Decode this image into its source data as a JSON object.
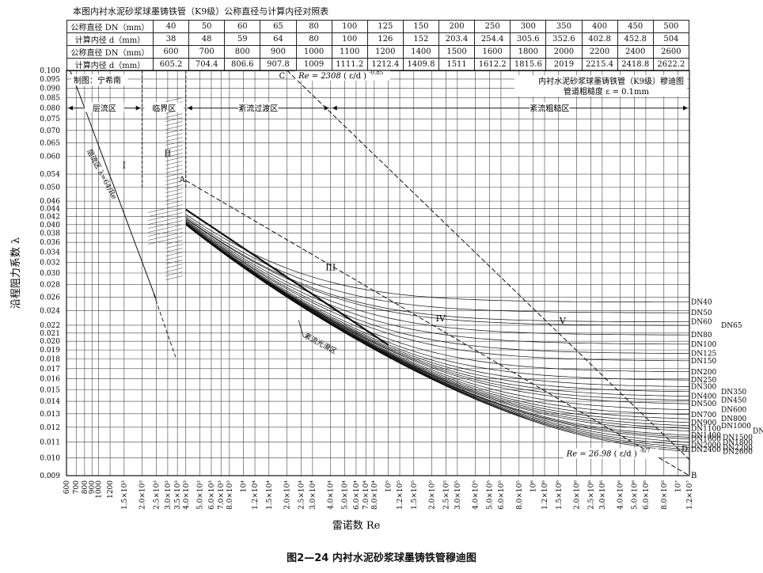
{
  "table": {
    "title": "本图内衬水泥砂浆球墨铸铁管（K9级）公称直径与计算内径对照表",
    "rows": [
      [
        "公称直径 DN（mm）",
        "40",
        "50",
        "60",
        "65",
        "80",
        "100",
        "125",
        "150",
        "200",
        "250",
        "300",
        "350",
        "400",
        "450",
        "500"
      ],
      [
        "计算内径 d（mm）",
        "38",
        "48",
        "59",
        "64",
        "80",
        "100",
        "126",
        "152",
        "203.4",
        "254.4",
        "305.6",
        "352.6",
        "402.8",
        "452.8",
        "504"
      ],
      [
        "公称直径 DN（mm）",
        "600",
        "700",
        "800",
        "900",
        "1000",
        "1100",
        "1200",
        "1400",
        "1500",
        "1600",
        "1800",
        "2000",
        "2200",
        "2400",
        "2600"
      ],
      [
        "计算内径 d（mm）",
        "605.2",
        "704.4",
        "806.6",
        "907.8",
        "1009",
        "1111.2",
        "1212.4",
        "1409.8",
        "1511",
        "1612.2",
        "1815.6",
        "2019",
        "2215.4",
        "2418.8",
        "2622.2"
      ]
    ]
  },
  "chart_data": {
    "type": "line",
    "title": "内衬水泥砂浆球墨铸铁管（K9级）穆迪图",
    "subtitle": "管道粗糙度 ε = 0.1mm",
    "credit": "制图：宁希南",
    "caption": "图2—24   内衬水泥砂浆球墨铸铁管穆迪图",
    "xlabel": "雷诺数 Re",
    "ylabel": "沿程阻力系数 λ",
    "x_scale": "log",
    "y_scale": "log",
    "xlim": [
      600,
      12000000
    ],
    "ylim": [
      0.009,
      0.1
    ],
    "grid": true,
    "x_tick_labels": [
      {
        "x": 600,
        "label": "600"
      },
      {
        "x": 700,
        "label": "700"
      },
      {
        "x": 800,
        "label": "800"
      },
      {
        "x": 900,
        "label": "900"
      },
      {
        "x": 1000,
        "label": "1000"
      },
      {
        "x": 1200,
        "label": "1200"
      },
      {
        "x": 1500,
        "label": "1.5×10³"
      },
      {
        "x": 2000,
        "label": "2.0×10³"
      },
      {
        "x": 2500,
        "label": "2.5×10³"
      },
      {
        "x": 3000,
        "label": "3.0×10³"
      },
      {
        "x": 3500,
        "label": "3.5×10³"
      },
      {
        "x": 4000,
        "label": "4.0×10³"
      },
      {
        "x": 5000,
        "label": "5.0×10³"
      },
      {
        "x": 6000,
        "label": "6.0×10³"
      },
      {
        "x": 7000,
        "label": "7.0×10³"
      },
      {
        "x": 8000,
        "label": "8.0×10³"
      },
      {
        "x": 10000,
        "label": "10⁴"
      },
      {
        "x": 12000,
        "label": "1.2×10⁴"
      },
      {
        "x": 15000,
        "label": "1.5×10⁴"
      },
      {
        "x": 20000,
        "label": "2.0×10⁴"
      },
      {
        "x": 25000,
        "label": "2.5×10⁴"
      },
      {
        "x": 30000,
        "label": "3.0×10⁴"
      },
      {
        "x": 40000,
        "label": "4.0×10⁴"
      },
      {
        "x": 50000,
        "label": "5.0×10⁴"
      },
      {
        "x": 60000,
        "label": "6.0×10⁴"
      },
      {
        "x": 70000,
        "label": "7.0×10⁴"
      },
      {
        "x": 80000,
        "label": "8.0×10⁴"
      },
      {
        "x": 100000,
        "label": "10⁵"
      },
      {
        "x": 120000,
        "label": "1.2×10⁵"
      },
      {
        "x": 150000,
        "label": "1.5×10⁵"
      },
      {
        "x": 200000,
        "label": "2.0×10⁵"
      },
      {
        "x": 250000,
        "label": "2.5×10⁵"
      },
      {
        "x": 300000,
        "label": "3.0×10⁵"
      },
      {
        "x": 400000,
        "label": "4.0×10⁵"
      },
      {
        "x": 500000,
        "label": "5.0×10⁵"
      },
      {
        "x": 600000,
        "label": "6.0×10⁵"
      },
      {
        "x": 800000,
        "label": "8.0×10⁵"
      },
      {
        "x": 1000000,
        "label": "10⁶"
      },
      {
        "x": 1200000,
        "label": "1.2×10⁶"
      },
      {
        "x": 1500000,
        "label": "1.5×10⁶"
      },
      {
        "x": 2000000,
        "label": "2.0×10⁶"
      },
      {
        "x": 2500000,
        "label": "2.5×10⁶"
      },
      {
        "x": 3000000,
        "label": "3.0×10⁶"
      },
      {
        "x": 4000000,
        "label": "4.0×10⁶"
      },
      {
        "x": 5000000,
        "label": "5.0×10⁶"
      },
      {
        "x": 6000000,
        "label": "6.0×10⁶"
      },
      {
        "x": 8000000,
        "label": "8.0×10⁶"
      },
      {
        "x": 10000000,
        "label": "10⁷"
      },
      {
        "x": 12000000,
        "label": "1.2×10⁷"
      }
    ],
    "y_ticks": [
      0.1,
      0.095,
      0.09,
      0.085,
      0.08,
      0.075,
      0.07,
      0.065,
      0.06,
      0.054,
      0.05,
      0.046,
      0.044,
      0.042,
      0.04,
      0.038,
      0.036,
      0.034,
      0.032,
      0.03,
      0.028,
      0.026,
      0.024,
      0.022,
      0.021,
      0.02,
      0.019,
      0.018,
      0.017,
      0.016,
      0.015,
      0.014,
      0.013,
      0.012,
      0.011,
      0.01,
      0.009
    ],
    "y_tick_labels": [
      "0.100",
      "0.095",
      "0.090",
      "0.085",
      "0.080",
      "0.075",
      "0.070",
      "0.065",
      "0.060",
      "0.054",
      "0.050",
      "0.046",
      "0.044",
      "0.042",
      "0.040",
      "0.038",
      "0.036",
      "0.034",
      "0.032",
      "0.030",
      "0.028",
      "0.026",
      "0.024",
      "0.022",
      "0.021",
      "0.020",
      "0.019",
      "0.018",
      "0.017",
      "0.016",
      "0.015",
      "0.014",
      "0.013",
      "0.012",
      "0.011",
      "0.010",
      "0.009"
    ],
    "roughness_mm": 0.1,
    "critical_re": 2000,
    "boundary_start_re": 4000,
    "series": [
      {
        "name": "DN40",
        "d_mm": 38
      },
      {
        "name": "DN50",
        "d_mm": 48
      },
      {
        "name": "DN60",
        "d_mm": 59
      },
      {
        "name": "DN65",
        "d_mm": 64
      },
      {
        "name": "DN80",
        "d_mm": 80
      },
      {
        "name": "DN100",
        "d_mm": 100
      },
      {
        "name": "DN125",
        "d_mm": 126
      },
      {
        "name": "DN150",
        "d_mm": 152
      },
      {
        "name": "DN200",
        "d_mm": 203.4
      },
      {
        "name": "DN250",
        "d_mm": 254.4
      },
      {
        "name": "DN300",
        "d_mm": 305.6
      },
      {
        "name": "DN350",
        "d_mm": 352.6
      },
      {
        "name": "DN400",
        "d_mm": 402.8
      },
      {
        "name": "DN450",
        "d_mm": 452.8
      },
      {
        "name": "DN500",
        "d_mm": 504
      },
      {
        "name": "DN600",
        "d_mm": 605.2
      },
      {
        "name": "DN700",
        "d_mm": 704.4
      },
      {
        "name": "DN800",
        "d_mm": 806.6
      },
      {
        "name": "DN900",
        "d_mm": 907.8
      },
      {
        "name": "DN1000",
        "d_mm": 1009
      },
      {
        "name": "DN1100",
        "d_mm": 1111.2
      },
      {
        "name": "DN1200",
        "d_mm": 1212.4
      },
      {
        "name": "DN1400",
        "d_mm": 1409.8
      },
      {
        "name": "DN1500",
        "d_mm": 1511
      },
      {
        "name": "DN1600",
        "d_mm": 1612.2
      },
      {
        "name": "DN1800",
        "d_mm": 1815.6
      },
      {
        "name": "DN2000",
        "d_mm": 2019
      },
      {
        "name": "DN2200",
        "d_mm": 2215.4
      },
      {
        "name": "DN2400",
        "d_mm": 2418.8
      },
      {
        "name": "DN2600",
        "d_mm": 2622.2
      }
    ],
    "zones": [
      {
        "label": "层流区",
        "from": 600,
        "to": 2000
      },
      {
        "label": "临界区",
        "from": 2000,
        "to": 4000
      },
      {
        "label": "紊流过渡区",
        "from": 4000,
        "to": 40000
      },
      {
        "label": "紊流粗糙区",
        "from": 40000,
        "to": 12000000
      }
    ],
    "region_labels": [
      {
        "label": "I",
        "x": 1500,
        "y": 0.056
      },
      {
        "label": "II",
        "x": 3000,
        "y": 0.06
      },
      {
        "label": "III",
        "x": 40000,
        "y": 0.0305
      },
      {
        "label": "IV",
        "x": 230000,
        "y": 0.0225
      },
      {
        "label": "V",
        "x": 1600000,
        "y": 0.0222
      }
    ],
    "laminar_line": {
      "label": "层流区 λ=64/Re",
      "formula": "λ = 64/Re"
    },
    "line_AB": {
      "from": {
        "label": "A",
        "re": 4000,
        "lambda": 0.052
      },
      "to": {
        "label": "B",
        "re": 12000000,
        "lambda": 0.009
      }
    },
    "line_CD": {
      "label_re": "Re = 2308",
      "label_rest": " ( ε/d ) ",
      "exponent": "-0.85",
      "from_label": "C",
      "to_label": "D"
    },
    "rough_boundary": {
      "label_re": "Re = 26.98",
      "label_rest": " ( ε/d ) ",
      "exponent": "-8/7"
    },
    "smooth_label": "紊流光滑区"
  }
}
